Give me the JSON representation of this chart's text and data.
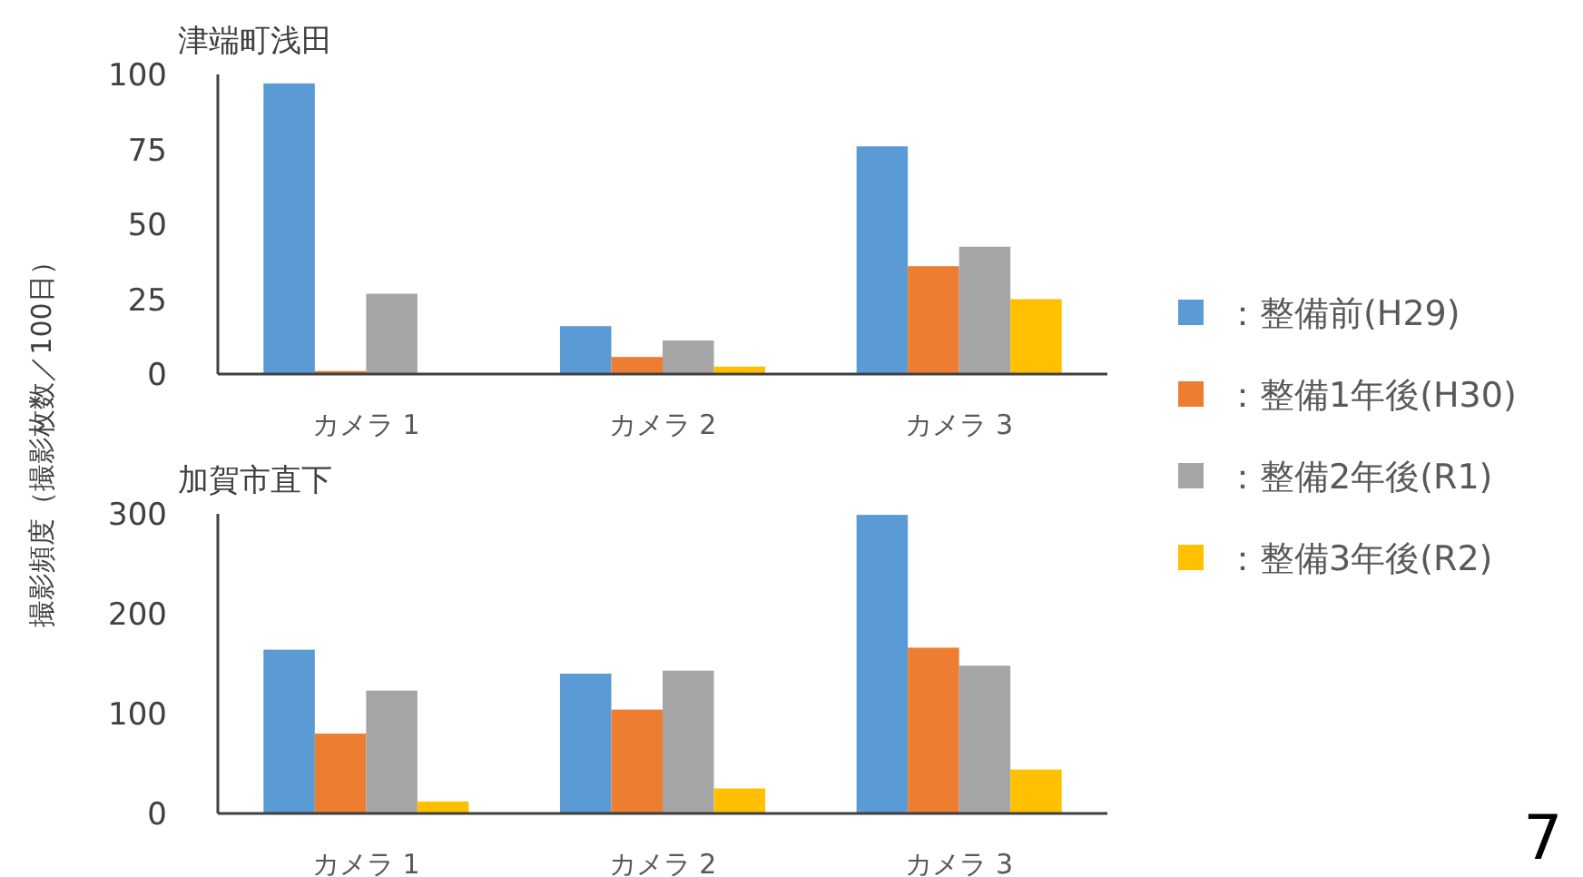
{
  "chart_data": [
    {
      "type": "bar",
      "title": "津端町浅田",
      "ylabel": "撮影頻度（撮影枚数／100日）",
      "categories": [
        "カメラ 1",
        "カメラ 2",
        "カメラ 3"
      ],
      "ylim": [
        0,
        100
      ],
      "yticks": [
        0,
        25,
        50,
        75,
        100
      ],
      "grid": false,
      "legend": "right",
      "series": [
        {
          "name": "：整備前(H29)",
          "color": "#5b9bd5",
          "values": [
            97,
            16,
            76
          ]
        },
        {
          "name": "：整備1年後(H30)",
          "color": "#ed7d31",
          "values": [
            1,
            5.7,
            36
          ]
        },
        {
          "name": "：整備2年後(R1)",
          "color": "#a5a5a5",
          "values": [
            26.8,
            11.2,
            42.5
          ]
        },
        {
          "name": "：整備3年後(R2)",
          "color": "#ffc000",
          "values": [
            0,
            2.5,
            25
          ]
        }
      ]
    },
    {
      "type": "bar",
      "title": "加賀市直下",
      "categories": [
        "カメラ 1",
        "カメラ 2",
        "カメラ 3"
      ],
      "ylim": [
        0,
        300
      ],
      "yticks": [
        0,
        100,
        200,
        300
      ],
      "grid": false,
      "legend": false,
      "annotations": [
        "7"
      ],
      "series": [
        {
          "color": "#5b9bd5",
          "values": [
            164,
            140,
            299
          ]
        },
        {
          "color": "#ed7d31",
          "values": [
            80,
            104,
            166
          ]
        },
        {
          "color": "#a5a5a5",
          "values": [
            123,
            143,
            148
          ]
        },
        {
          "color": "#ffc000",
          "values": [
            12,
            25,
            44
          ]
        }
      ]
    }
  ]
}
